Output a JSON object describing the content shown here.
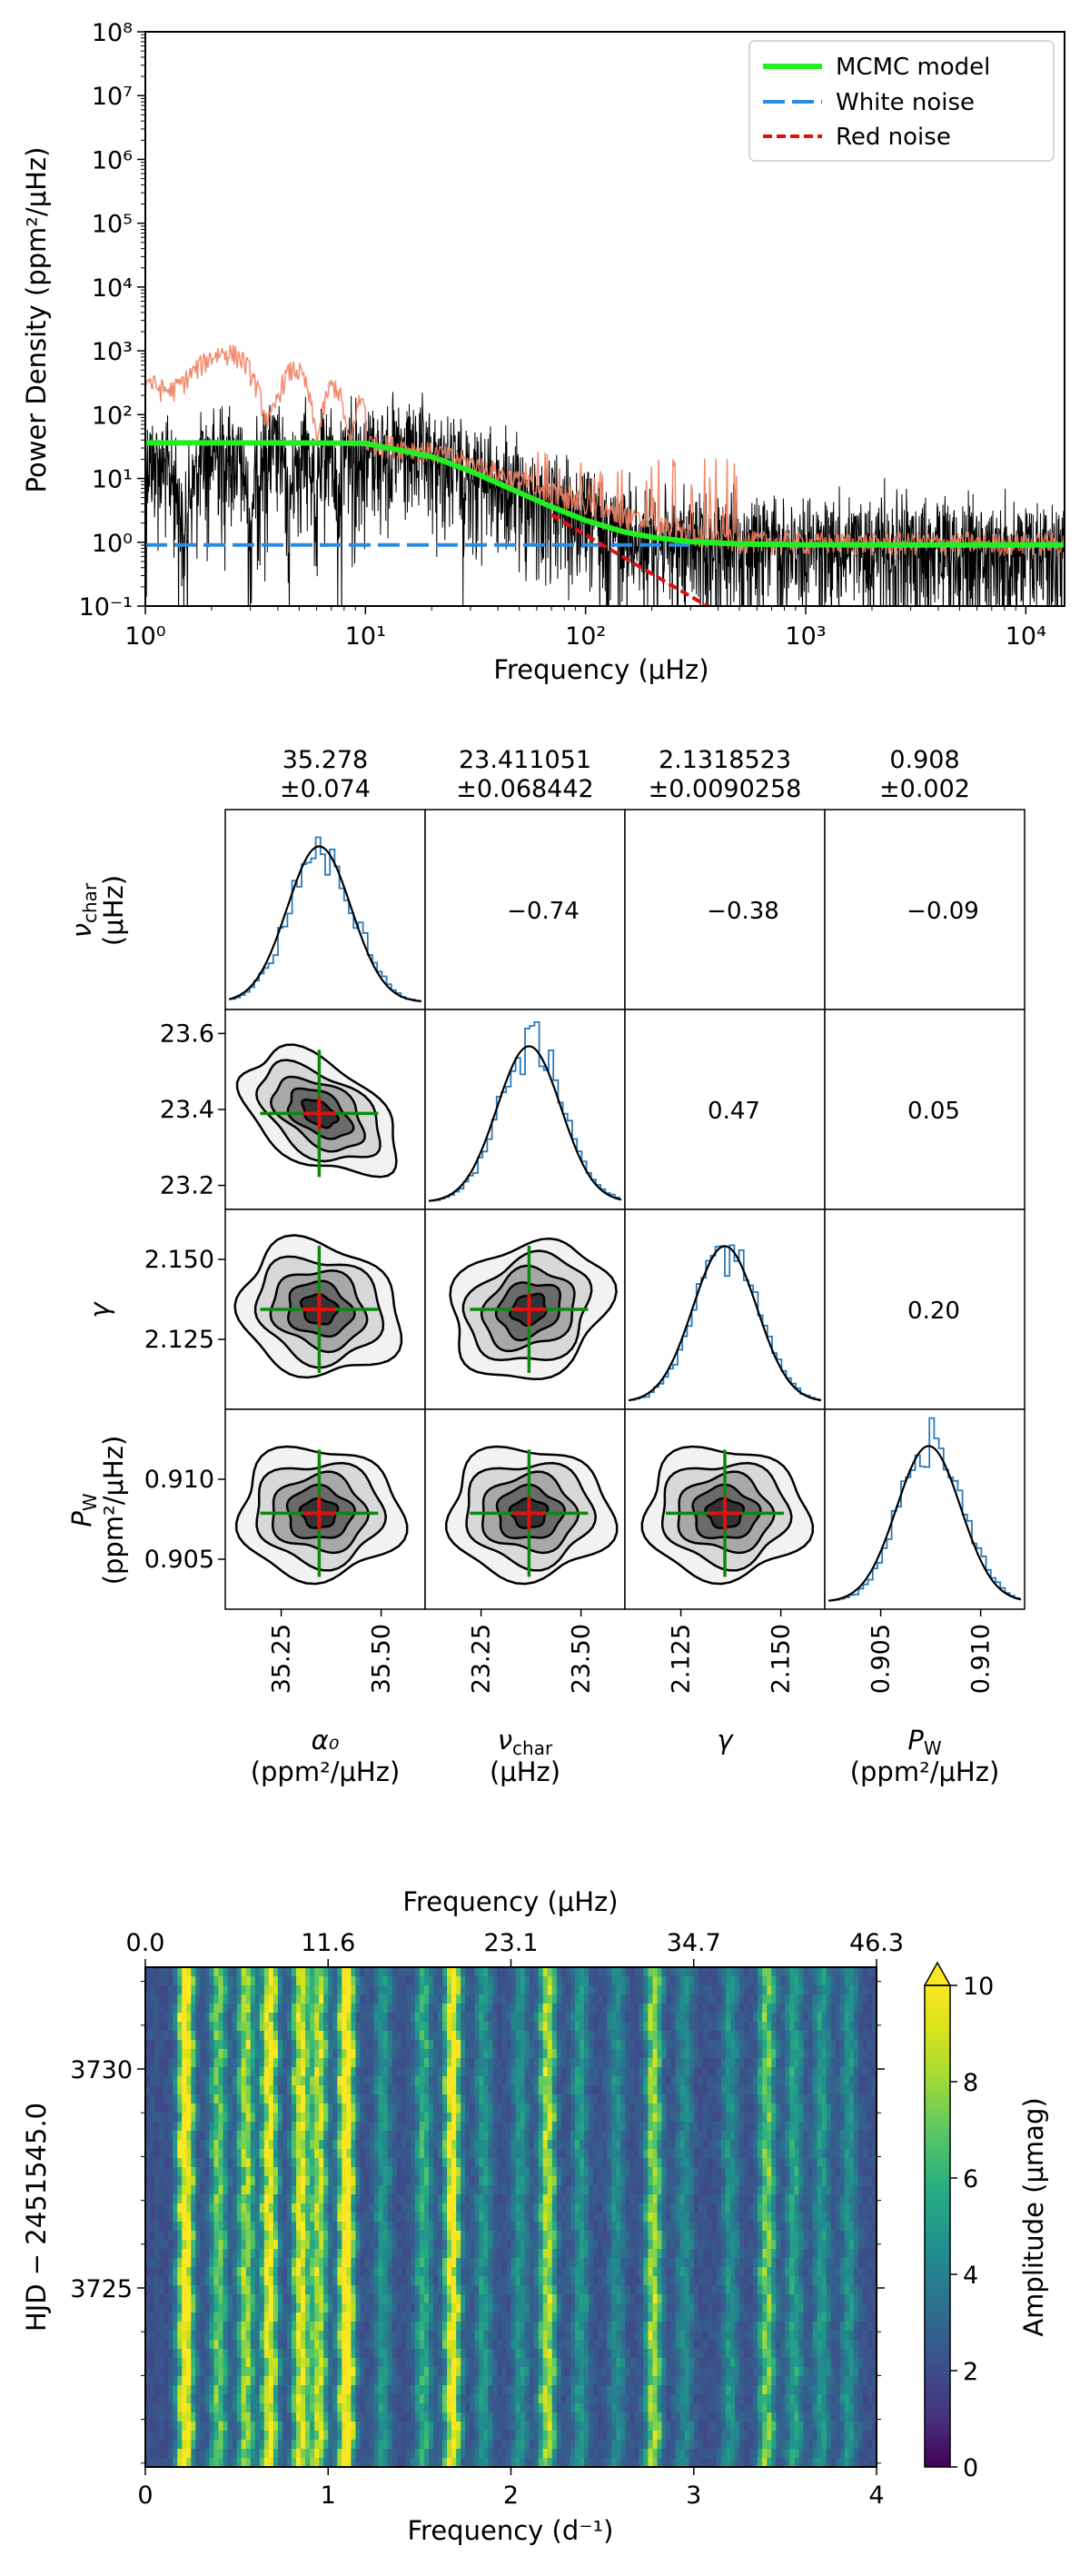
{
  "chart_data": [
    {
      "type": "line",
      "xscale": "log",
      "yscale": "log",
      "xlabel": "Frequency (μHz)",
      "ylabel": "Power Density (ppm²/μHz)",
      "xlim": [
        1,
        15000
      ],
      "ylim": [
        0.1,
        100000000
      ],
      "x_ticks": [
        "10⁰",
        "10¹",
        "10²",
        "10³",
        "10⁴"
      ],
      "y_ticks": [
        "10⁻¹",
        "10⁰",
        "10¹",
        "10²",
        "10³",
        "10⁴",
        "10⁵",
        "10⁶",
        "10⁷",
        "10⁸"
      ],
      "legend_position": "top-right",
      "legend": [
        "MCMC model",
        "White noise",
        "Red noise"
      ],
      "colors": {
        "model": "#22ee22",
        "white": "#2a8be0",
        "red": "#e01010",
        "spectrum": "#000000",
        "smoothed": "#f08060"
      },
      "model": {
        "alpha0": 35.278,
        "nu_char": 23.411051,
        "gamma": 2.1318523,
        "P_W": 0.908,
        "x": [
          1,
          5,
          10,
          20,
          30,
          50,
          70,
          100,
          150,
          200,
          300,
          500,
          1000,
          5000,
          15000
        ],
        "y": [
          36.2,
          36.0,
          35.5,
          22.0,
          13.0,
          6.0,
          3.6,
          2.2,
          1.45,
          1.2,
          1.02,
          0.94,
          0.91,
          0.908,
          0.908
        ]
      },
      "white_noise": {
        "x": [
          1,
          300
        ],
        "y": [
          0.908,
          0.908
        ]
      },
      "red_noise": {
        "x": [
          70,
          100,
          200,
          400
        ],
        "y": [
          2.7,
          1.3,
          0.32,
          0.08
        ]
      }
    },
    {
      "type": "corner",
      "parameters": [
        {
          "label": "α₀",
          "unit": "(ppm²/μHz)",
          "median": "35.278",
          "error": "±0.074",
          "ticks": [
            "35.25",
            "35.50"
          ]
        },
        {
          "label": "ν",
          "sub": "char",
          "unit": "(μHz)",
          "median": "23.411051",
          "error": "±0.068442",
          "ticks": [
            "23.25",
            "23.50"
          ]
        },
        {
          "label": "γ",
          "unit": "",
          "median": "2.1318523",
          "error": "±0.0090258",
          "ticks": [
            "2.125",
            "2.150"
          ]
        },
        {
          "label": "P",
          "sub": "W",
          "unit": "(ppm²/μHz)",
          "median": "0.908",
          "error": "±0.002",
          "ticks": [
            "0.905",
            "0.910"
          ]
        }
      ],
      "left_ticks": {
        "nu_char": [
          "23.6",
          "23.4",
          "23.2"
        ],
        "gamma": [
          "2.150",
          "2.125"
        ],
        "P_W": [
          "0.910",
          "0.905"
        ]
      },
      "correlations": [
        {
          "row": 0,
          "col": 1,
          "value": "−0.74"
        },
        {
          "row": 0,
          "col": 2,
          "value": "−0.38"
        },
        {
          "row": 0,
          "col": 3,
          "value": "−0.09"
        },
        {
          "row": 1,
          "col": 2,
          "value": "0.47"
        },
        {
          "row": 1,
          "col": 3,
          "value": "0.05"
        },
        {
          "row": 2,
          "col": 3,
          "value": "0.20"
        }
      ]
    },
    {
      "type": "heatmap",
      "xlabel": "Frequency (d⁻¹)",
      "x2label": "Frequency (μHz)",
      "ylabel": "HJD − 2451545.0",
      "colorbar_label": "Amplitude (μmag)",
      "xlim": [
        0,
        4
      ],
      "x_ticks": [
        "0",
        "1",
        "2",
        "3",
        "4"
      ],
      "x2_ticks": [
        "0.0",
        "11.6",
        "23.1",
        "34.7",
        "46.3"
      ],
      "y_ticks": [
        "3730",
        "3725"
      ],
      "colorbar_ticks": [
        "0",
        "2",
        "4",
        "6",
        "8",
        "10"
      ],
      "colormap": "viridis",
      "peaks_d": [
        0.22,
        0.4,
        0.55,
        0.68,
        0.85,
        0.95,
        1.1,
        1.3,
        1.52,
        1.68,
        1.85,
        2.05,
        2.2,
        2.38,
        2.58,
        2.78,
        2.95,
        3.2,
        3.4,
        3.55,
        3.7,
        3.85
      ],
      "peak_amp": [
        9.5,
        5.5,
        6.5,
        8.5,
        8.0,
        7.0,
        9.8,
        3.0,
        4.0,
        9.0,
        3.0,
        2.8,
        7.0,
        3.0,
        2.5,
        6.5,
        2.5,
        2.8,
        5.5,
        3.5,
        3.0,
        2.8
      ]
    }
  ]
}
